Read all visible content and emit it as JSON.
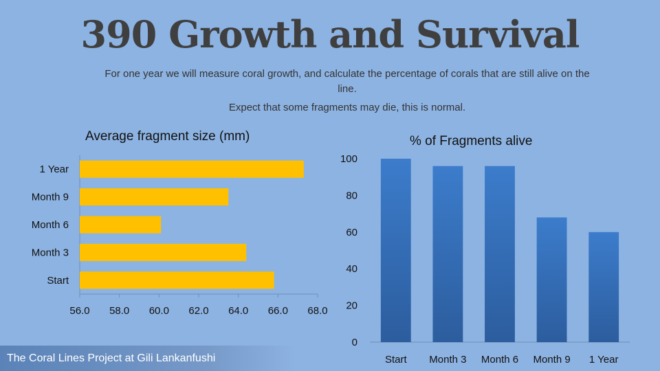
{
  "slide": {
    "title": "390 Growth and Survival",
    "subtitle_line1": "For one year we will measure coral growth, and calculate the percentage of corals that are still alive on the line.",
    "subtitle_line2": "Expect that some fragments may die, this is normal.",
    "footer": "The Coral Lines Project at Gili Lankanfushi"
  },
  "colors": {
    "background": "#8db3e2",
    "bar_fill": "#ffc000",
    "column_fill": "#3a78c4"
  },
  "chart_data": [
    {
      "type": "bar",
      "orientation": "horizontal",
      "title": "Average fragment size (mm)",
      "categories": [
        "Start",
        "Month 3",
        "Month 6",
        "Month 9",
        "1 Year"
      ],
      "values": [
        65.8,
        64.4,
        60.1,
        63.5,
        67.3
      ],
      "xlim": [
        56.0,
        68.0
      ],
      "xticks": [
        "56.0",
        "58.0",
        "60.0",
        "62.0",
        "64.0",
        "66.0",
        "68.0"
      ],
      "grid": false
    },
    {
      "type": "bar",
      "orientation": "vertical",
      "title": "% of Fragments alive",
      "categories": [
        "Start",
        "Month 3",
        "Month 6",
        "Month 9",
        "1 Year"
      ],
      "values": [
        100,
        96,
        96,
        68,
        60
      ],
      "ylim": [
        0,
        100
      ],
      "yticks": [
        "0",
        "20",
        "40",
        "60",
        "80",
        "100"
      ],
      "grid": false
    }
  ]
}
